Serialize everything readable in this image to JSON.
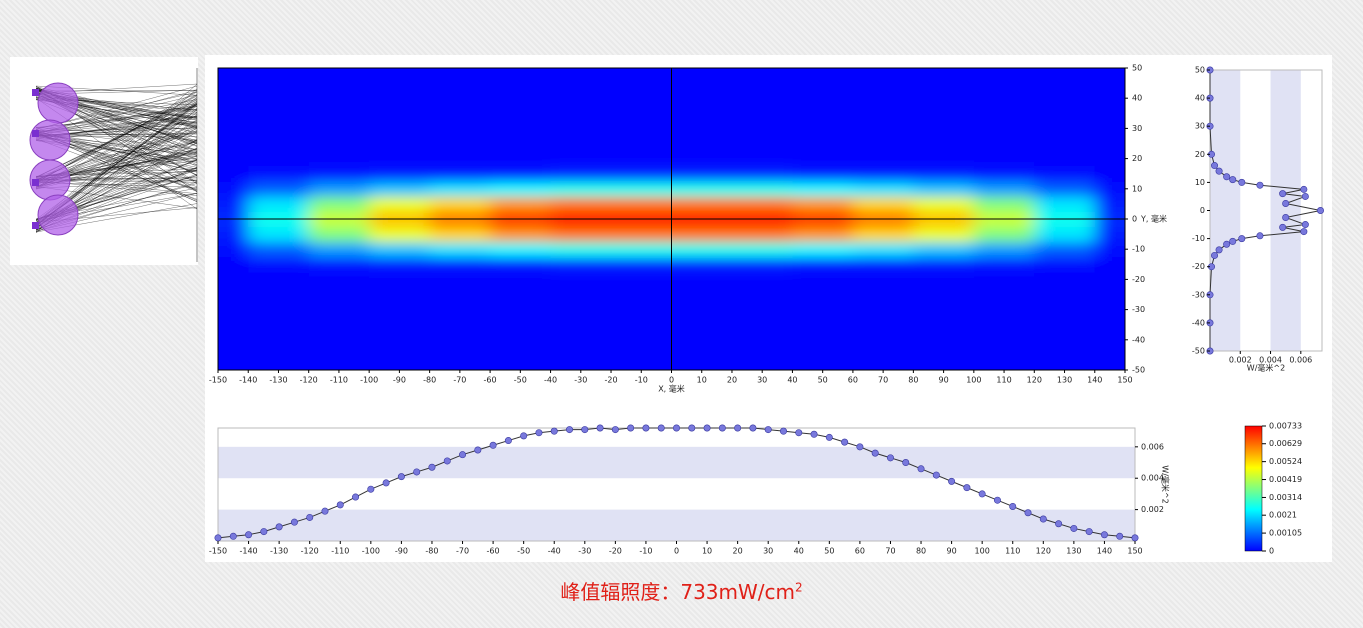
{
  "chart_data": [
    {
      "type": "heatmap",
      "x_label": "X, 毫米",
      "y_label": "Y, 毫米",
      "x": [
        -150,
        -130,
        -110,
        -90,
        -70,
        -50,
        -30,
        -10,
        10,
        30,
        50,
        70,
        90,
        110,
        130,
        150
      ],
      "y": [
        -15,
        -10,
        -5,
        0,
        5,
        10,
        15
      ],
      "z": [
        [
          0,
          0.0001,
          0.0002,
          0.0003,
          0.0003,
          0.0003,
          0.0004,
          0.0004,
          0.0004,
          0.0004,
          0.0003,
          0.0003,
          0.0003,
          0.0002,
          0.0001,
          0
        ],
        [
          0.0001,
          0.0009,
          0.0015,
          0.0019,
          0.0022,
          0.0024,
          0.0026,
          0.0026,
          0.0026,
          0.0026,
          0.0024,
          0.0022,
          0.0019,
          0.0015,
          0.0009,
          0.0001
        ],
        [
          0.0003,
          0.0022,
          0.0037,
          0.0047,
          0.0053,
          0.0059,
          0.0062,
          0.0062,
          0.0062,
          0.0062,
          0.0059,
          0.0053,
          0.0047,
          0.0037,
          0.0022,
          0.0003
        ],
        [
          0.0004,
          0.0026,
          0.0044,
          0.0055,
          0.0062,
          0.0069,
          0.0073,
          0.0073,
          0.0073,
          0.0073,
          0.0069,
          0.0062,
          0.0055,
          0.0044,
          0.0026,
          0.0004
        ],
        [
          0.0003,
          0.0022,
          0.0037,
          0.0047,
          0.0053,
          0.0059,
          0.0062,
          0.0062,
          0.0062,
          0.0062,
          0.0059,
          0.0053,
          0.0047,
          0.0037,
          0.0022,
          0.0003
        ],
        [
          0.0001,
          0.0009,
          0.0015,
          0.0019,
          0.0022,
          0.0024,
          0.0026,
          0.0026,
          0.0026,
          0.0026,
          0.0024,
          0.0022,
          0.0019,
          0.0015,
          0.0009,
          0.0001
        ],
        [
          0,
          0.0001,
          0.0002,
          0.0003,
          0.0003,
          0.0003,
          0.0004,
          0.0004,
          0.0004,
          0.0004,
          0.0003,
          0.0003,
          0.0003,
          0.0002,
          0.0001,
          0
        ]
      ],
      "xlim": [
        -150,
        150
      ],
      "ylim": [
        -50,
        50
      ],
      "xticks": [
        -150,
        -140,
        -130,
        -120,
        -110,
        -100,
        -90,
        -80,
        -70,
        -60,
        -50,
        -40,
        -30,
        -20,
        -10,
        0,
        10,
        20,
        30,
        40,
        50,
        60,
        70,
        80,
        90,
        100,
        110,
        120,
        130,
        140,
        150
      ],
      "yticks": [
        -50,
        -40,
        -30,
        -20,
        -10,
        0,
        10,
        20,
        30,
        40,
        50
      ],
      "zlim": [
        0,
        0.00733
      ],
      "zticks": [
        0,
        0.00105,
        0.0021,
        0.00314,
        0.00419,
        0.00524,
        0.00629,
        0.00733
      ],
      "colormap": "jet",
      "crosshair": true
    },
    {
      "type": "line",
      "y_label": "W/毫米^2",
      "color": "#7878dc",
      "x": [
        -150,
        -145,
        -140,
        -135,
        -130,
        -125,
        -120,
        -115,
        -110,
        -105,
        -100,
        -95,
        -90,
        -85,
        -80,
        -75,
        -70,
        -65,
        -60,
        -55,
        -50,
        -45,
        -40,
        -35,
        -30,
        -25,
        -20,
        -15,
        -10,
        -5,
        0,
        5,
        10,
        15,
        20,
        25,
        30,
        35,
        40,
        45,
        50,
        55,
        60,
        65,
        70,
        75,
        80,
        85,
        90,
        95,
        100,
        105,
        110,
        115,
        120,
        125,
        130,
        135,
        140,
        145,
        150
      ],
      "values": [
        0.0002,
        0.0003,
        0.0004,
        0.0006,
        0.0009,
        0.0012,
        0.0015,
        0.0019,
        0.0023,
        0.0028,
        0.0033,
        0.0037,
        0.0041,
        0.0044,
        0.0047,
        0.0051,
        0.0055,
        0.0058,
        0.0061,
        0.0064,
        0.0067,
        0.0069,
        0.007,
        0.0071,
        0.0071,
        0.0072,
        0.0071,
        0.0072,
        0.0072,
        0.0072,
        0.0072,
        0.0072,
        0.0072,
        0.0072,
        0.0072,
        0.0072,
        0.0071,
        0.007,
        0.0069,
        0.0068,
        0.0066,
        0.0063,
        0.006,
        0.0056,
        0.0053,
        0.005,
        0.0046,
        0.0042,
        0.0038,
        0.0034,
        0.003,
        0.0026,
        0.0022,
        0.0018,
        0.0014,
        0.0011,
        0.0008,
        0.0006,
        0.0004,
        0.0003,
        0.0002
      ],
      "xlim": [
        -150,
        150
      ],
      "ylim": [
        0,
        0.0072
      ],
      "xticks": [
        -150,
        -140,
        -130,
        -120,
        -110,
        -100,
        -90,
        -80,
        -70,
        -60,
        -50,
        -40,
        -30,
        -20,
        -10,
        0,
        10,
        20,
        30,
        40,
        50,
        60,
        70,
        80,
        90,
        100,
        110,
        120,
        130,
        140,
        150
      ],
      "yticks": [
        0.002,
        0.004,
        0.006
      ]
    },
    {
      "type": "vline",
      "x_label": "W/毫米^2",
      "color": "#7878dc",
      "y": [
        -50,
        -40,
        -30,
        -20,
        -16,
        -14,
        -12,
        -11,
        -10,
        -9,
        -7.5,
        -6,
        -5,
        -2.5,
        0,
        2.5,
        5,
        6,
        7.5,
        9,
        10,
        11,
        12,
        14,
        16,
        20,
        30,
        40,
        50
      ],
      "values": [
        0,
        0,
        0,
        0.0001,
        0.0003,
        0.0006,
        0.0011,
        0.0015,
        0.0021,
        0.0033,
        0.0062,
        0.0048,
        0.0063,
        0.005,
        0.0073,
        0.005,
        0.0063,
        0.0048,
        0.0062,
        0.0033,
        0.0021,
        0.0015,
        0.0011,
        0.0006,
        0.0003,
        0.0001,
        0,
        0,
        0
      ],
      "xlim": [
        0,
        0.0074
      ],
      "ylim": [
        -50,
        50
      ],
      "xticks": [
        0.002,
        0.004,
        0.006
      ],
      "yticks": [
        -50,
        -40,
        -30,
        -20,
        -10,
        0,
        10,
        20,
        30,
        40,
        50
      ]
    }
  ],
  "caption": {
    "text": "峰值辐照度：733mW/cm",
    "superscript": "2"
  }
}
